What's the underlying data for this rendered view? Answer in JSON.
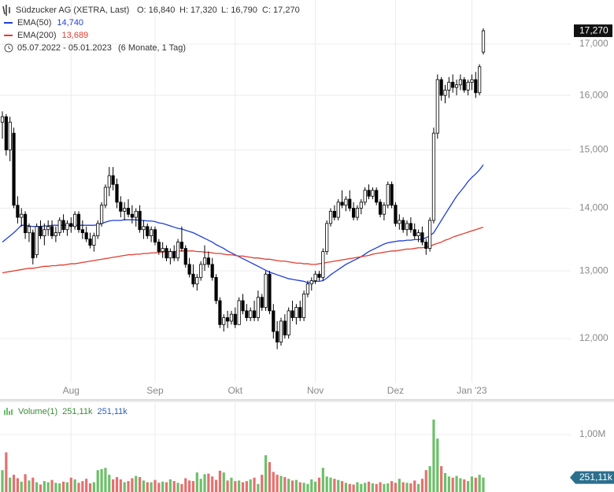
{
  "chart_data": {
    "type": "candlestick",
    "header": {
      "title": "Südzucker AG (XETRA, Last)",
      "open": "O: 16,840",
      "high": "H: 17,320",
      "low": "L: 16,790",
      "close": "C: 17,270",
      "range": "05.07.2022 - 05.01.2023",
      "period": "(6 Monate, 1 Tag)"
    },
    "log_scale": true,
    "grid": true,
    "candle_color": "#000000",
    "last_label": "17,270",
    "ylim": [
      11.16,
      17.91
    ],
    "yticks": [
      {
        "value": 12,
        "label": "12,000"
      },
      {
        "value": 13,
        "label": "13,000"
      },
      {
        "value": 14,
        "label": "14,000"
      },
      {
        "value": 15,
        "label": "15,000"
      },
      {
        "value": 16,
        "label": "16,000"
      },
      {
        "value": 17,
        "label": "17,000"
      }
    ],
    "categories": [
      null,
      null,
      null,
      null,
      null,
      null,
      null,
      null,
      null,
      null,
      null,
      null,
      null,
      null,
      null,
      null,
      null,
      null,
      "Aug",
      null,
      null,
      null,
      null,
      null,
      null,
      null,
      null,
      null,
      null,
      null,
      null,
      null,
      null,
      null,
      null,
      null,
      null,
      null,
      null,
      null,
      "Sep",
      null,
      null,
      null,
      null,
      null,
      null,
      null,
      null,
      null,
      null,
      null,
      null,
      null,
      null,
      null,
      null,
      null,
      null,
      null,
      null,
      "Okt",
      null,
      null,
      null,
      null,
      null,
      null,
      null,
      null,
      null,
      null,
      null,
      null,
      null,
      null,
      null,
      null,
      null,
      null,
      null,
      null,
      "Nov",
      null,
      null,
      null,
      null,
      null,
      null,
      null,
      null,
      null,
      null,
      null,
      null,
      null,
      null,
      null,
      null,
      null,
      null,
      null,
      null,
      "Dez",
      null,
      null,
      null,
      null,
      null,
      null,
      null,
      null,
      null,
      null,
      null,
      null,
      null,
      null,
      null,
      null,
      null,
      null,
      null,
      "Jan '23",
      null,
      null,
      null
    ],
    "candles": [
      [
        15.5,
        15.7,
        15.2,
        15.6
      ],
      [
        15.6,
        15.65,
        14.9,
        15.0
      ],
      [
        15.0,
        15.6,
        14.8,
        15.5
      ],
      [
        15.3,
        15.4,
        14.0,
        14.05
      ],
      [
        14.05,
        14.2,
        13.75,
        13.85
      ],
      [
        13.85,
        14.0,
        13.7,
        13.9
      ],
      [
        13.9,
        13.95,
        13.5,
        13.6
      ],
      [
        13.6,
        13.75,
        13.45,
        13.7
      ],
      [
        13.6,
        13.65,
        13.1,
        13.2
      ],
      [
        13.25,
        13.75,
        13.2,
        13.7
      ],
      [
        13.7,
        13.8,
        13.5,
        13.55
      ],
      [
        13.55,
        13.75,
        13.4,
        13.65
      ],
      [
        13.65,
        13.8,
        13.55,
        13.7
      ],
      [
        13.7,
        13.8,
        13.5,
        13.55
      ],
      [
        13.55,
        13.7,
        13.45,
        13.6
      ],
      [
        13.6,
        13.85,
        13.55,
        13.8
      ],
      [
        13.8,
        13.9,
        13.6,
        13.65
      ],
      [
        13.65,
        13.8,
        13.55,
        13.75
      ],
      [
        13.75,
        13.85,
        13.6,
        13.7
      ],
      [
        13.7,
        13.95,
        13.65,
        13.9
      ],
      [
        13.9,
        13.95,
        13.6,
        13.65
      ],
      [
        13.65,
        13.8,
        13.5,
        13.6
      ],
      [
        13.6,
        13.7,
        13.45,
        13.5
      ],
      [
        13.5,
        13.6,
        13.35,
        13.4
      ],
      [
        13.4,
        13.6,
        13.3,
        13.55
      ],
      [
        13.55,
        13.8,
        13.5,
        13.75
      ],
      [
        13.75,
        14.1,
        13.7,
        14.05
      ],
      [
        14.05,
        14.4,
        14.0,
        14.35
      ],
      [
        14.35,
        14.7,
        14.2,
        14.55
      ],
      [
        14.55,
        14.7,
        14.3,
        14.4
      ],
      [
        14.4,
        14.5,
        14.0,
        14.1
      ],
      [
        14.1,
        14.2,
        13.85,
        13.95
      ],
      [
        13.95,
        14.1,
        13.8,
        14.0
      ],
      [
        14.0,
        14.15,
        13.85,
        13.9
      ],
      [
        13.9,
        14.05,
        13.75,
        13.85
      ],
      [
        13.85,
        14.0,
        13.7,
        13.95
      ],
      [
        13.95,
        14.05,
        13.6,
        13.65
      ],
      [
        13.65,
        13.8,
        13.5,
        13.7
      ],
      [
        13.7,
        13.75,
        13.5,
        13.55
      ],
      [
        13.55,
        13.7,
        13.45,
        13.65
      ],
      [
        13.65,
        13.7,
        13.4,
        13.45
      ],
      [
        13.45,
        13.5,
        13.25,
        13.3
      ],
      [
        13.3,
        13.45,
        13.2,
        13.35
      ],
      [
        13.35,
        13.4,
        13.15,
        13.2
      ],
      [
        13.2,
        13.35,
        13.1,
        13.3
      ],
      [
        13.3,
        13.4,
        13.15,
        13.2
      ],
      [
        13.2,
        13.5,
        13.15,
        13.45
      ],
      [
        13.45,
        13.7,
        13.3,
        13.35
      ],
      [
        13.35,
        13.4,
        13.05,
        13.1
      ],
      [
        13.1,
        13.2,
        12.9,
        12.95
      ],
      [
        12.95,
        13.1,
        12.75,
        12.8
      ],
      [
        12.8,
        12.95,
        12.7,
        12.9
      ],
      [
        12.9,
        13.15,
        12.85,
        13.1
      ],
      [
        13.1,
        13.4,
        13.0,
        13.2
      ],
      [
        13.2,
        13.3,
        13.05,
        13.1
      ],
      [
        13.1,
        13.2,
        12.85,
        12.9
      ],
      [
        12.9,
        12.95,
        12.5,
        12.55
      ],
      [
        12.55,
        12.6,
        12.15,
        12.2
      ],
      [
        12.2,
        12.35,
        12.1,
        12.3
      ],
      [
        12.3,
        12.4,
        12.15,
        12.25
      ],
      [
        12.25,
        12.4,
        12.2,
        12.35
      ],
      [
        12.35,
        12.45,
        12.15,
        12.2
      ],
      [
        12.2,
        12.6,
        12.2,
        12.55
      ],
      [
        12.55,
        12.65,
        12.35,
        12.4
      ],
      [
        12.4,
        12.5,
        12.25,
        12.3
      ],
      [
        12.3,
        12.45,
        12.25,
        12.4
      ],
      [
        12.4,
        12.55,
        12.25,
        12.3
      ],
      [
        12.3,
        12.7,
        12.25,
        12.6
      ],
      [
        12.6,
        12.65,
        12.4,
        12.45
      ],
      [
        12.45,
        13.0,
        12.4,
        12.95
      ],
      [
        12.95,
        13.0,
        12.35,
        12.4
      ],
      [
        12.4,
        12.5,
        12.0,
        12.1
      ],
      [
        12.1,
        12.25,
        11.85,
        11.95
      ],
      [
        11.95,
        12.3,
        11.9,
        12.25
      ],
      [
        12.25,
        12.35,
        12.0,
        12.05
      ],
      [
        12.05,
        12.45,
        12.0,
        12.4
      ],
      [
        12.4,
        12.55,
        12.25,
        12.3
      ],
      [
        12.3,
        12.5,
        12.2,
        12.45
      ],
      [
        12.45,
        12.55,
        12.25,
        12.3
      ],
      [
        12.3,
        12.7,
        12.25,
        12.65
      ],
      [
        12.65,
        12.85,
        12.6,
        12.8
      ],
      [
        12.8,
        12.9,
        12.7,
        12.85
      ],
      [
        12.85,
        13.0,
        12.8,
        12.95
      ],
      [
        12.95,
        13.0,
        12.85,
        12.9
      ],
      [
        12.9,
        13.35,
        12.85,
        13.3
      ],
      [
        13.3,
        13.8,
        13.25,
        13.75
      ],
      [
        13.75,
        14.0,
        13.7,
        13.95
      ],
      [
        13.95,
        14.05,
        13.8,
        13.85
      ],
      [
        13.85,
        14.15,
        13.8,
        14.1
      ],
      [
        14.1,
        14.3,
        14.0,
        14.05
      ],
      [
        14.05,
        14.2,
        13.95,
        14.15
      ],
      [
        14.15,
        14.3,
        13.95,
        14.0
      ],
      [
        14.0,
        14.1,
        13.8,
        13.85
      ],
      [
        13.85,
        14.05,
        13.8,
        14.0
      ],
      [
        14.0,
        14.15,
        13.9,
        14.1
      ],
      [
        14.1,
        14.35,
        14.05,
        14.3
      ],
      [
        14.3,
        14.4,
        14.15,
        14.2
      ],
      [
        14.2,
        14.35,
        14.15,
        14.3
      ],
      [
        14.3,
        14.35,
        14.05,
        14.1
      ],
      [
        14.1,
        14.15,
        13.85,
        13.9
      ],
      [
        13.9,
        14.1,
        13.8,
        14.05
      ],
      [
        14.05,
        14.45,
        14.0,
        14.4
      ],
      [
        14.4,
        14.45,
        14.0,
        14.05
      ],
      [
        14.05,
        14.1,
        13.7,
        13.75
      ],
      [
        13.75,
        13.9,
        13.65,
        13.8
      ],
      [
        13.8,
        13.85,
        13.6,
        13.65
      ],
      [
        13.65,
        13.8,
        13.55,
        13.75
      ],
      [
        13.75,
        13.85,
        13.6,
        13.65
      ],
      [
        13.65,
        13.75,
        13.5,
        13.55
      ],
      [
        13.55,
        13.65,
        13.45,
        13.6
      ],
      [
        13.6,
        13.7,
        13.4,
        13.45
      ],
      [
        13.45,
        13.5,
        13.25,
        13.35
      ],
      [
        13.35,
        13.85,
        13.3,
        13.8
      ],
      [
        13.8,
        15.4,
        13.75,
        15.3
      ],
      [
        15.3,
        16.4,
        15.2,
        16.3
      ],
      [
        16.3,
        16.35,
        15.9,
        16.0
      ],
      [
        16.0,
        16.2,
        15.85,
        16.1
      ],
      [
        16.1,
        16.35,
        15.95,
        16.25
      ],
      [
        16.25,
        16.4,
        16.05,
        16.15
      ],
      [
        16.15,
        16.3,
        16.0,
        16.2
      ],
      [
        16.2,
        16.4,
        16.1,
        16.3
      ],
      [
        16.3,
        16.35,
        16.05,
        16.1
      ],
      [
        16.1,
        16.3,
        16.0,
        16.25
      ],
      [
        16.25,
        16.4,
        16.1,
        16.3
      ],
      [
        16.3,
        16.45,
        15.95,
        16.05
      ],
      [
        16.05,
        16.6,
        16.0,
        16.55
      ],
      [
        16.84,
        17.32,
        16.79,
        17.27
      ]
    ],
    "series": [
      {
        "name": "EMA(50)",
        "last_label": "14,740",
        "color": "#1f3fd6",
        "values": [
          13.45,
          13.5,
          13.55,
          13.6,
          13.66,
          13.72,
          13.72,
          13.71,
          13.7,
          13.7,
          13.7,
          13.71,
          13.71,
          13.72,
          13.72,
          13.72,
          13.72,
          13.72,
          13.72,
          13.72,
          13.72,
          13.72,
          13.72,
          13.72,
          13.72,
          13.73,
          13.75,
          13.77,
          13.79,
          13.8,
          13.8,
          13.8,
          13.81,
          13.81,
          13.81,
          13.81,
          13.8,
          13.8,
          13.79,
          13.79,
          13.78,
          13.76,
          13.75,
          13.73,
          13.71,
          13.69,
          13.67,
          13.66,
          13.64,
          13.62,
          13.6,
          13.57,
          13.54,
          13.51,
          13.48,
          13.45,
          13.41,
          13.38,
          13.35,
          13.31,
          13.28,
          13.25,
          13.22,
          13.19,
          13.16,
          13.13,
          13.1,
          13.07,
          13.04,
          13.01,
          12.98,
          12.96,
          12.94,
          12.92,
          12.9,
          12.88,
          12.87,
          12.86,
          12.85,
          12.84,
          12.82,
          12.83,
          12.84,
          12.84,
          12.85,
          12.89,
          12.94,
          12.98,
          13.02,
          13.06,
          13.1,
          13.13,
          13.16,
          13.19,
          13.22,
          13.26,
          13.3,
          13.33,
          13.36,
          13.39,
          13.42,
          13.44,
          13.45,
          13.46,
          13.47,
          13.47,
          13.48,
          13.48,
          13.49,
          13.49,
          13.5,
          13.52,
          13.55,
          13.6,
          13.7,
          13.8,
          13.9,
          14.0,
          14.1,
          14.2,
          14.28,
          14.36,
          14.45,
          14.52,
          14.58,
          14.65,
          14.74
        ]
      },
      {
        "name": "EMA(200)",
        "last_label": "13,689",
        "color": "#e23b2e",
        "values": [
          12.97,
          12.98,
          12.99,
          13.0,
          13.01,
          13.02,
          13.03,
          13.04,
          13.04,
          13.05,
          13.06,
          13.07,
          13.07,
          13.08,
          13.08,
          13.09,
          13.09,
          13.1,
          13.11,
          13.11,
          13.12,
          13.13,
          13.14,
          13.15,
          13.16,
          13.17,
          13.18,
          13.19,
          13.2,
          13.21,
          13.22,
          13.23,
          13.24,
          13.25,
          13.25,
          13.26,
          13.26,
          13.27,
          13.27,
          13.28,
          13.28,
          13.29,
          13.29,
          13.3,
          13.3,
          13.3,
          13.31,
          13.31,
          13.31,
          13.31,
          13.31,
          13.3,
          13.3,
          13.29,
          13.29,
          13.28,
          13.27,
          13.27,
          13.26,
          13.25,
          13.25,
          13.24,
          13.23,
          13.23,
          13.22,
          13.21,
          13.2,
          13.2,
          13.19,
          13.18,
          13.18,
          13.17,
          13.16,
          13.15,
          13.15,
          13.14,
          13.13,
          13.12,
          13.12,
          13.11,
          13.11,
          13.1,
          13.1,
          13.11,
          13.12,
          13.13,
          13.14,
          13.15,
          13.16,
          13.17,
          13.18,
          13.19,
          13.2,
          13.21,
          13.22,
          13.23,
          13.24,
          13.26,
          13.27,
          13.28,
          13.29,
          13.3,
          13.31,
          13.31,
          13.32,
          13.33,
          13.34,
          13.34,
          13.35,
          13.36,
          13.36,
          13.37,
          13.38,
          13.41,
          13.43,
          13.45,
          13.48,
          13.5,
          13.53,
          13.55,
          13.57,
          13.59,
          13.61,
          13.63,
          13.65,
          13.67,
          13.69
        ]
      }
    ],
    "volume": {
      "name": "Volume(1)",
      "last_label": "251,11k",
      "up_color": "#6dbf6a",
      "down_color": "#e5706f",
      "ylim": [
        0,
        1575000
      ],
      "yticks": [
        {
          "value": 1000000,
          "label": "1,00M"
        }
      ],
      "values": [
        380000,
        690000,
        250000,
        300000,
        240000,
        180000,
        310000,
        200000,
        250000,
        170000,
        130000,
        190000,
        170000,
        210000,
        160000,
        150000,
        180000,
        170000,
        250000,
        220000,
        160000,
        190000,
        230000,
        150000,
        170000,
        380000,
        400000,
        420000,
        300000,
        220000,
        260000,
        220000,
        170000,
        190000,
        240000,
        280000,
        260000,
        200000,
        170000,
        170000,
        210000,
        160000,
        180000,
        170000,
        220000,
        190000,
        160000,
        140000,
        240000,
        200000,
        190000,
        340000,
        230000,
        310000,
        320000,
        270000,
        210000,
        370000,
        340000,
        200000,
        250000,
        190000,
        200000,
        170000,
        190000,
        220000,
        250000,
        140000,
        300000,
        640000,
        520000,
        350000,
        300000,
        280000,
        260000,
        230000,
        200000,
        210000,
        170000,
        160000,
        140000,
        220000,
        180000,
        250000,
        420000,
        270000,
        250000,
        230000,
        210000,
        190000,
        160000,
        140000,
        130000,
        170000,
        140000,
        160000,
        180000,
        150000,
        140000,
        170000,
        140000,
        150000,
        190000,
        160000,
        230000,
        170000,
        160000,
        150000,
        200000,
        140000,
        230000,
        380000,
        450000,
        1260000,
        930000,
        450000,
        330000,
        270000,
        250000,
        280000,
        240000,
        220000,
        190000,
        270000,
        250000,
        300000,
        251110
      ]
    }
  }
}
